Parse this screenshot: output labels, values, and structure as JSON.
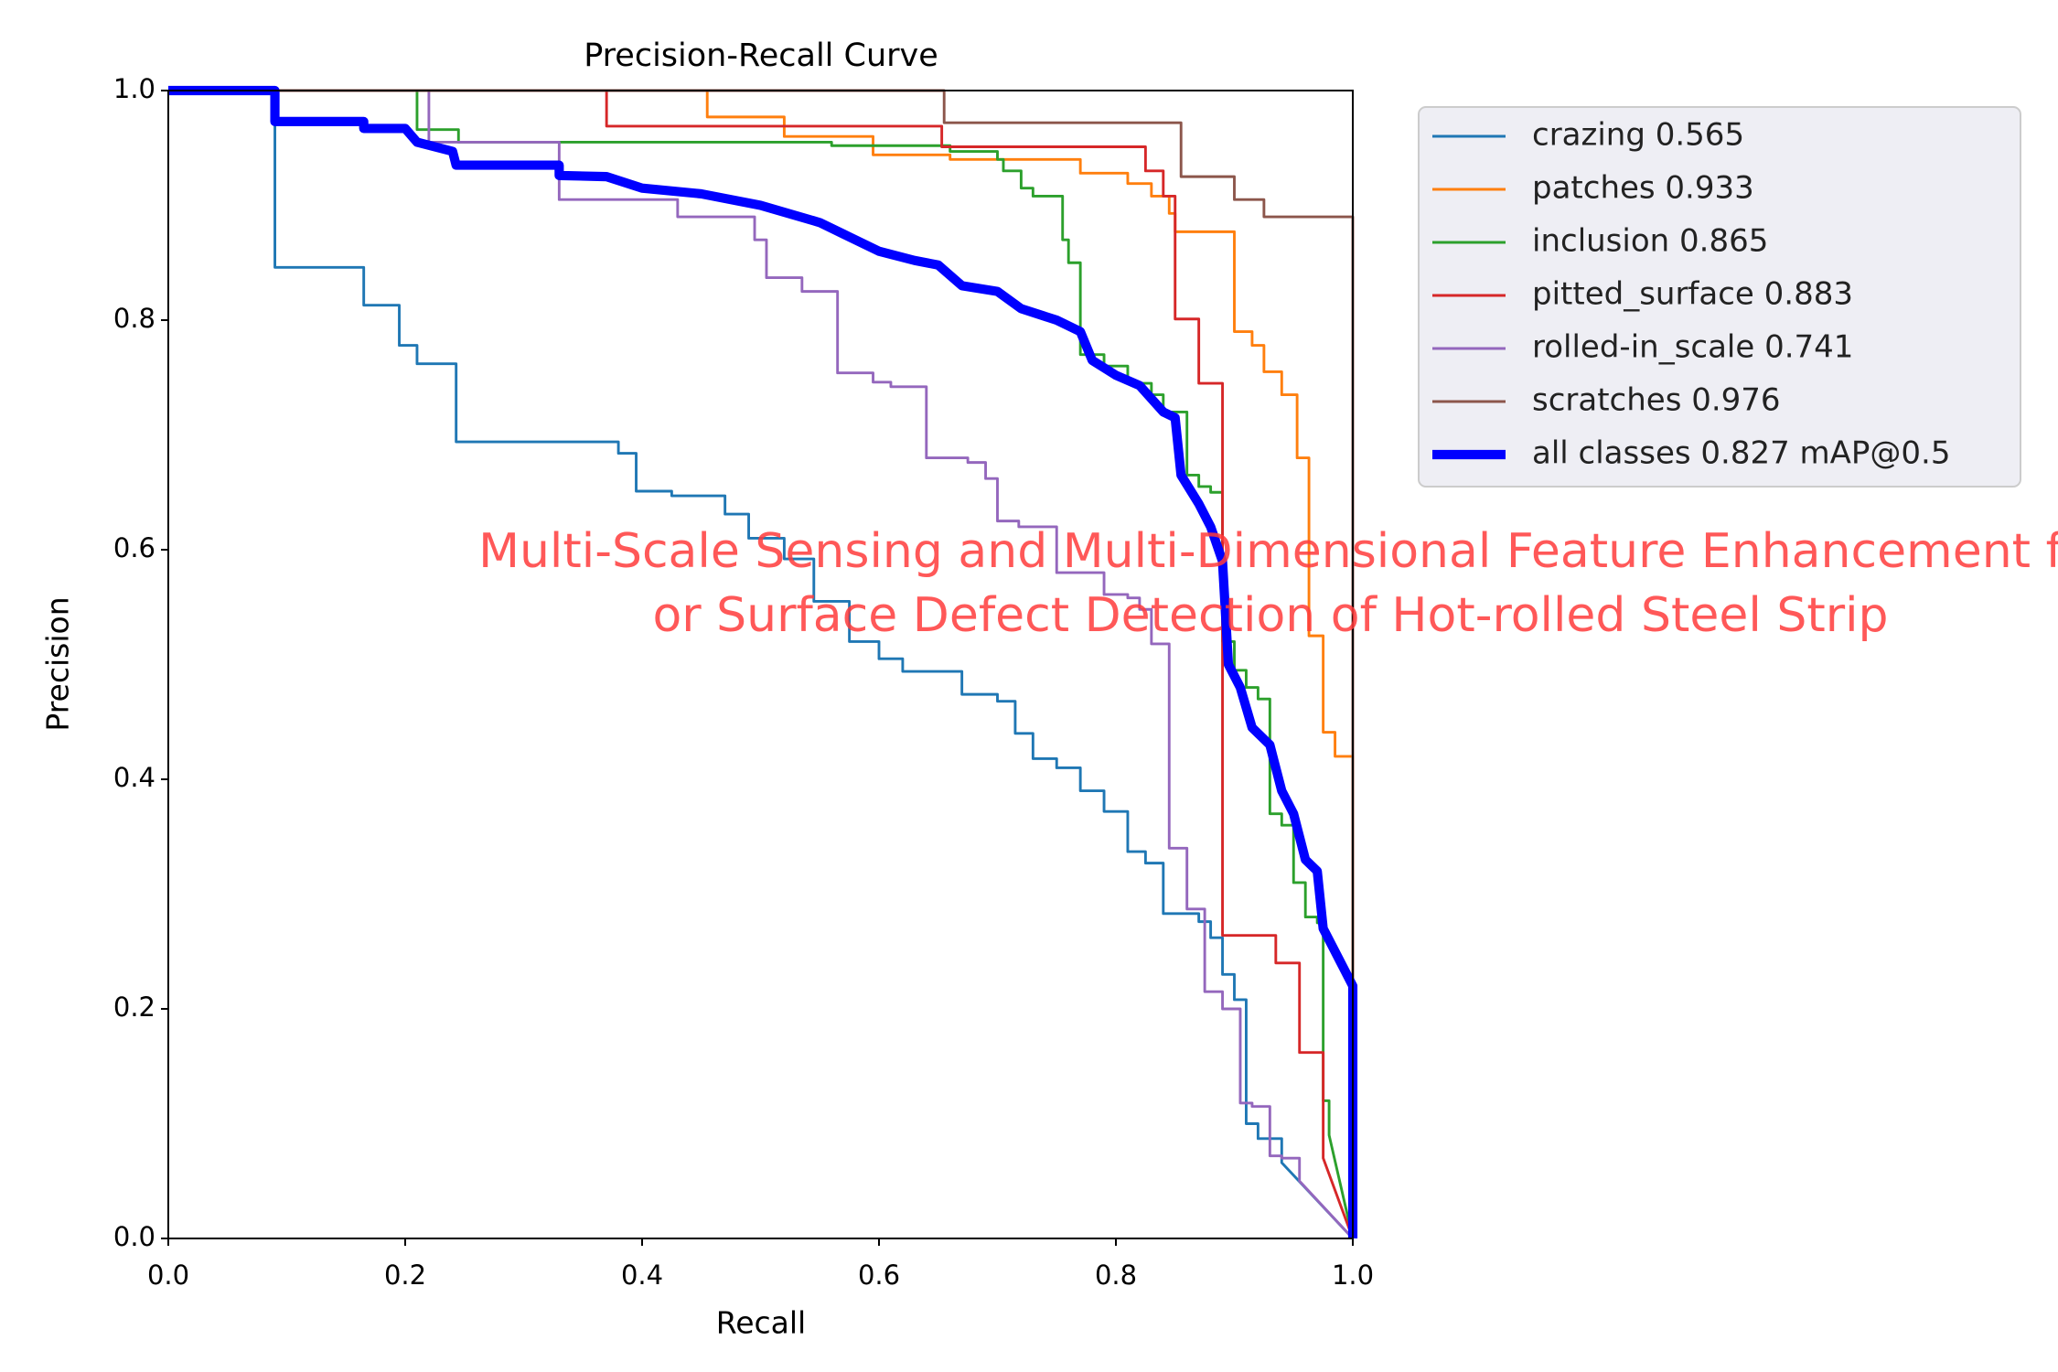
{
  "chart_data": {
    "type": "line",
    "title": "Precision-Recall Curve",
    "x_label": "Recall",
    "y_label": "Precision",
    "xlim": [
      0,
      1
    ],
    "ylim": [
      0,
      1
    ],
    "xticks": [
      {
        "value": 0,
        "label": "0.0"
      },
      0.2,
      0.4,
      0.6,
      0.8,
      {
        "value": 1,
        "label": "1.0"
      }
    ],
    "yticks": [
      {
        "value": 0,
        "label": "0.0"
      },
      0.2,
      0.4,
      0.6,
      0.8,
      {
        "value": 1,
        "label": "1.0"
      }
    ],
    "annotations": [
      "Multi-Scale Sensing and Multi-Dimensional Feature Enhancement f",
      "or Surface Defect Detection of Hot-rolled Steel Strip"
    ],
    "series": [
      {
        "name": "crazing 0.565",
        "color": "#1f77b4",
        "width": 2,
        "x": [
          0,
          0.09,
          0.09,
          0.165,
          0.165,
          0.195,
          0.195,
          0.21,
          0.21,
          0.243,
          0.243,
          0.38,
          0.38,
          0.395,
          0.395,
          0.425,
          0.425,
          0.47,
          0.47,
          0.49,
          0.49,
          0.52,
          0.52,
          0.545,
          0.545,
          0.575,
          0.575,
          0.6,
          0.6,
          0.62,
          0.62,
          0.67,
          0.67,
          0.7,
          0.7,
          0.715,
          0.715,
          0.73,
          0.73,
          0.75,
          0.75,
          0.77,
          0.77,
          0.79,
          0.79,
          0.81,
          0.81,
          0.825,
          0.825,
          0.84,
          0.84,
          0.87,
          0.87,
          0.88,
          0.88,
          0.89,
          0.89,
          0.9,
          0.9,
          0.91,
          0.91,
          0.92,
          0.92,
          0.94,
          0.94,
          1.0
        ],
        "values": [
          1,
          1,
          0.846,
          0.846,
          0.813,
          0.813,
          0.778,
          0.778,
          0.762,
          0.762,
          0.694,
          0.694,
          0.684,
          0.684,
          0.651,
          0.651,
          0.647,
          0.647,
          0.631,
          0.631,
          0.61,
          0.61,
          0.592,
          0.592,
          0.555,
          0.555,
          0.52,
          0.52,
          0.505,
          0.505,
          0.494,
          0.494,
          0.474,
          0.474,
          0.468,
          0.468,
          0.44,
          0.44,
          0.418,
          0.418,
          0.41,
          0.41,
          0.39,
          0.39,
          0.372,
          0.372,
          0.337,
          0.337,
          0.327,
          0.327,
          0.283,
          0.283,
          0.276,
          0.276,
          0.262,
          0.262,
          0.23,
          0.23,
          0.208,
          0.208,
          0.1,
          0.1,
          0.087,
          0.087,
          0.066,
          0.0
        ]
      },
      {
        "name": "patches 0.933",
        "color": "#ff7f0e",
        "width": 2,
        "x": [
          0,
          0.455,
          0.455,
          0.52,
          0.52,
          0.595,
          0.595,
          0.66,
          0.66,
          0.77,
          0.77,
          0.81,
          0.81,
          0.83,
          0.83,
          0.845,
          0.845,
          0.85,
          0.85,
          0.9,
          0.9,
          0.915,
          0.915,
          0.925,
          0.925,
          0.94,
          0.94,
          0.953,
          0.953,
          0.963,
          0.963,
          0.975,
          0.975,
          0.985,
          0.985,
          1.0,
          1.0
        ],
        "values": [
          1,
          1,
          0.977,
          0.977,
          0.96,
          0.96,
          0.944,
          0.944,
          0.94,
          0.94,
          0.928,
          0.928,
          0.919,
          0.919,
          0.908,
          0.908,
          0.893,
          0.893,
          0.877,
          0.877,
          0.79,
          0.79,
          0.778,
          0.778,
          0.755,
          0.755,
          0.735,
          0.735,
          0.68,
          0.68,
          0.525,
          0.525,
          0.441,
          0.441,
          0.42,
          0.42,
          0.0
        ]
      },
      {
        "name": "inclusion 0.865",
        "color": "#2ca02c",
        "width": 2,
        "x": [
          0,
          0.21,
          0.21,
          0.245,
          0.245,
          0.56,
          0.56,
          0.66,
          0.66,
          0.7,
          0.7,
          0.705,
          0.705,
          0.72,
          0.72,
          0.73,
          0.73,
          0.755,
          0.755,
          0.76,
          0.76,
          0.77,
          0.77,
          0.79,
          0.79,
          0.81,
          0.81,
          0.83,
          0.83,
          0.84,
          0.84,
          0.86,
          0.86,
          0.87,
          0.87,
          0.88,
          0.88,
          0.89,
          0.89,
          0.9,
          0.9,
          0.91,
          0.91,
          0.92,
          0.92,
          0.93,
          0.93,
          0.94,
          0.94,
          0.95,
          0.95,
          0.96,
          0.96,
          0.97,
          0.97,
          0.975,
          0.975,
          0.98,
          0.98,
          1.0
        ],
        "values": [
          1,
          1,
          0.966,
          0.966,
          0.955,
          0.955,
          0.952,
          0.952,
          0.947,
          0.947,
          0.94,
          0.94,
          0.93,
          0.93,
          0.915,
          0.915,
          0.908,
          0.908,
          0.87,
          0.87,
          0.85,
          0.85,
          0.77,
          0.77,
          0.76,
          0.76,
          0.745,
          0.745,
          0.735,
          0.735,
          0.72,
          0.72,
          0.665,
          0.665,
          0.655,
          0.655,
          0.65,
          0.65,
          0.52,
          0.52,
          0.495,
          0.495,
          0.48,
          0.48,
          0.47,
          0.47,
          0.37,
          0.37,
          0.36,
          0.36,
          0.31,
          0.31,
          0.28,
          0.28,
          0.275,
          0.275,
          0.12,
          0.12,
          0.09,
          0.0
        ]
      },
      {
        "name": "pitted_surface 0.883",
        "color": "#d62728",
        "width": 2,
        "x": [
          0,
          0.37,
          0.37,
          0.653,
          0.653,
          0.825,
          0.825,
          0.84,
          0.84,
          0.85,
          0.85,
          0.87,
          0.87,
          0.89,
          0.89,
          0.935,
          0.935,
          0.955,
          0.955,
          0.975,
          0.975,
          1.0
        ],
        "values": [
          1,
          1,
          0.969,
          0.969,
          0.951,
          0.951,
          0.93,
          0.93,
          0.908,
          0.908,
          0.801,
          0.801,
          0.745,
          0.745,
          0.264,
          0.264,
          0.24,
          0.24,
          0.162,
          0.162,
          0.07,
          0.0
        ]
      },
      {
        "name": "rolled-in_scale 0.741",
        "color": "#9467bd",
        "width": 2,
        "x": [
          0,
          0.22,
          0.22,
          0.33,
          0.33,
          0.43,
          0.43,
          0.495,
          0.495,
          0.505,
          0.505,
          0.535,
          0.535,
          0.565,
          0.565,
          0.595,
          0.595,
          0.61,
          0.61,
          0.64,
          0.64,
          0.675,
          0.675,
          0.69,
          0.69,
          0.7,
          0.7,
          0.718,
          0.718,
          0.75,
          0.75,
          0.79,
          0.79,
          0.81,
          0.81,
          0.82,
          0.82,
          0.83,
          0.83,
          0.845,
          0.845,
          0.86,
          0.86,
          0.875,
          0.875,
          0.89,
          0.89,
          0.905,
          0.905,
          0.915,
          0.915,
          0.93,
          0.93,
          0.94,
          0.94,
          0.955,
          0.955,
          1.0
        ],
        "values": [
          1,
          1,
          0.955,
          0.955,
          0.905,
          0.905,
          0.89,
          0.89,
          0.87,
          0.87,
          0.837,
          0.837,
          0.825,
          0.825,
          0.754,
          0.754,
          0.746,
          0.746,
          0.742,
          0.742,
          0.68,
          0.68,
          0.676,
          0.676,
          0.662,
          0.662,
          0.625,
          0.625,
          0.62,
          0.62,
          0.58,
          0.58,
          0.561,
          0.561,
          0.558,
          0.558,
          0.548,
          0.548,
          0.518,
          0.518,
          0.34,
          0.34,
          0.287,
          0.287,
          0.215,
          0.215,
          0.2,
          0.2,
          0.118,
          0.118,
          0.115,
          0.115,
          0.072,
          0.072,
          0.07,
          0.07,
          0.05,
          0.0
        ]
      },
      {
        "name": "scratches 0.976",
        "color": "#8c564b",
        "width": 2,
        "x": [
          0,
          0.655,
          0.655,
          0.855,
          0.855,
          0.9,
          0.9,
          0.925,
          0.925,
          1.0,
          1.0
        ],
        "values": [
          1,
          1,
          0.972,
          0.972,
          0.925,
          0.925,
          0.905,
          0.905,
          0.89,
          0.89,
          0.0
        ]
      },
      {
        "name": "all classes 0.827 mAP@0.5",
        "color": "#0000ff",
        "width": 7,
        "x": [
          0,
          0.09,
          0.09,
          0.165,
          0.165,
          0.2,
          0.21,
          0.24,
          0.243,
          0.33,
          0.33,
          0.37,
          0.4,
          0.45,
          0.5,
          0.55,
          0.57,
          0.6,
          0.63,
          0.64,
          0.65,
          0.67,
          0.7,
          0.72,
          0.75,
          0.77,
          0.78,
          0.8,
          0.82,
          0.84,
          0.85,
          0.855,
          0.87,
          0.88,
          0.89,
          0.895,
          0.905,
          0.915,
          0.93,
          0.94,
          0.95,
          0.96,
          0.97,
          0.975,
          0.98,
          0.99,
          1.0,
          1.0
        ],
        "values": [
          1,
          1,
          0.973,
          0.973,
          0.967,
          0.967,
          0.955,
          0.947,
          0.935,
          0.935,
          0.926,
          0.925,
          0.915,
          0.91,
          0.9,
          0.885,
          0.875,
          0.86,
          0.852,
          0.85,
          0.848,
          0.83,
          0.825,
          0.81,
          0.8,
          0.79,
          0.765,
          0.752,
          0.743,
          0.72,
          0.715,
          0.665,
          0.64,
          0.62,
          0.59,
          0.5,
          0.48,
          0.445,
          0.43,
          0.39,
          0.37,
          0.33,
          0.32,
          0.27,
          0.26,
          0.24,
          0.22,
          0.0
        ]
      }
    ]
  }
}
